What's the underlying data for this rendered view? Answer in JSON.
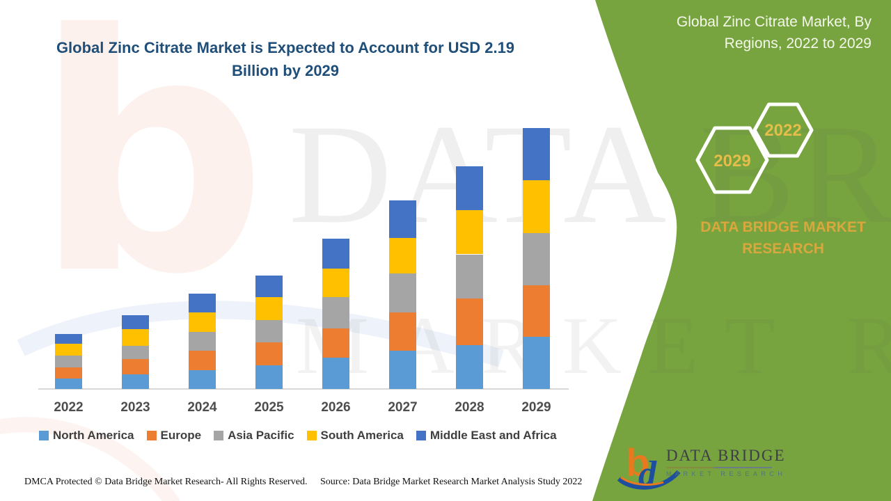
{
  "title": {
    "line1": "Global Zinc Citrate Market is Expected to Account for USD 2.19",
    "line2": "Billion by 2029"
  },
  "panel": {
    "title_line1": "Global Zinc Citrate Market, By",
    "title_line2": "Regions, 2022 to 2029",
    "hexagons": [
      {
        "label": "2029"
      },
      {
        "label": "2022"
      }
    ],
    "brand_text": "DATA BRIDGE MARKET RESEARCH",
    "green_color": "#77A43E",
    "gold_color": "#D9A73E"
  },
  "chart_data": {
    "type": "bar",
    "stacked": true,
    "unit": "USD Billion",
    "title": "Global Zinc Citrate Market, By Regions, 2022 to 2029",
    "categories": [
      "2022",
      "2023",
      "2024",
      "2025",
      "2026",
      "2027",
      "2028",
      "2029"
    ],
    "series": [
      {
        "name": "North America",
        "color": "#5B9BD5",
        "values": [
          0.09,
          0.12,
          0.16,
          0.2,
          0.26,
          0.32,
          0.37,
          0.44
        ]
      },
      {
        "name": "Europe",
        "color": "#ED7D31",
        "values": [
          0.09,
          0.13,
          0.16,
          0.19,
          0.25,
          0.32,
          0.39,
          0.43
        ]
      },
      {
        "name": "Asia Pacific",
        "color": "#A5A5A5",
        "values": [
          0.1,
          0.11,
          0.16,
          0.19,
          0.26,
          0.33,
          0.37,
          0.44
        ]
      },
      {
        "name": "South America",
        "color": "#FFC000",
        "values": [
          0.1,
          0.14,
          0.16,
          0.19,
          0.24,
          0.3,
          0.37,
          0.44
        ]
      },
      {
        "name": "Middle East and Africa",
        "color": "#4472C4",
        "values": [
          0.08,
          0.12,
          0.16,
          0.18,
          0.25,
          0.31,
          0.37,
          0.44
        ]
      }
    ],
    "totals": [
      0.46,
      0.62,
      0.8,
      0.95,
      1.26,
      1.58,
      1.87,
      2.19
    ],
    "ylim": [
      0,
      2.3
    ],
    "grid": false,
    "legend_position": "bottom",
    "value_labels": false
  },
  "watermarks": {
    "logo_letter": "b",
    "line1": "DATA BRIDGE",
    "line2": "MARKET RESEARCH"
  },
  "logo": {
    "brand": "DATA BRIDGE",
    "sub": "MARKET RESEARCH"
  },
  "footer": {
    "dmca": "DMCA Protected © Data Bridge Market Research- All Rights Reserved.",
    "source": "Source: Data Bridge Market Research Market Analysis Study 2022"
  }
}
